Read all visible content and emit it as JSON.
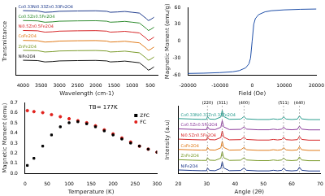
{
  "chart_data": [
    {
      "type": "line",
      "x_label": "Wavelength (cm-1)",
      "y_label": "Transmittance",
      "x": [
        4000,
        3600,
        3400,
        3200,
        3000,
        2500,
        2000,
        1700,
        1600,
        1400,
        1200,
        1000,
        800,
        600,
        560,
        500,
        400
      ],
      "xlim": [
        4200,
        300
      ],
      "xticks": [
        4000,
        3500,
        3000,
        2500,
        2000,
        1500,
        1000,
        500
      ],
      "ylim": [
        0,
        4.1
      ],
      "grid": false,
      "tick_labels": "x",
      "series": [
        {
          "name": "NiFe2O4",
          "color": "#111111",
          "values": [
            0.9,
            0.88,
            0.8,
            0.82,
            0.86,
            0.88,
            0.89,
            0.86,
            0.8,
            0.82,
            0.85,
            0.8,
            0.75,
            0.4,
            0.3,
            0.35,
            0.5
          ]
        },
        {
          "name": "ZnFe2O4",
          "color": "#7a9a2a",
          "values": [
            1.5,
            1.48,
            1.4,
            1.42,
            1.46,
            1.48,
            1.49,
            1.46,
            1.4,
            1.42,
            1.45,
            1.4,
            1.35,
            1.0,
            0.9,
            0.95,
            1.1
          ]
        },
        {
          "name": "CoFe2O4",
          "color": "#e07b1a",
          "values": [
            2.1,
            2.08,
            2.0,
            2.02,
            2.06,
            2.08,
            2.09,
            2.06,
            2.0,
            2.02,
            2.05,
            2.0,
            1.95,
            1.6,
            1.5,
            1.55,
            1.7
          ]
        },
        {
          "name": "Ni0.5Zn0.5Fe2O4",
          "color": "#d62728",
          "values": [
            2.7,
            2.68,
            2.6,
            2.62,
            2.66,
            2.68,
            2.69,
            2.66,
            2.6,
            2.62,
            2.65,
            2.6,
            2.55,
            2.2,
            2.1,
            2.15,
            2.3
          ]
        },
        {
          "name": "Co0.5Zn0.5Fe2O4",
          "color": "#2e8b2e",
          "values": [
            3.3,
            3.28,
            3.2,
            3.22,
            3.26,
            3.28,
            3.29,
            3.26,
            3.2,
            3.22,
            3.25,
            3.2,
            3.15,
            2.8,
            2.7,
            2.75,
            2.9
          ]
        },
        {
          "name": "Co0.33Ni0.33Zn0.33Fe2O4",
          "color": "#1f3b8c",
          "values": [
            3.9,
            3.88,
            3.8,
            3.82,
            3.86,
            3.88,
            3.89,
            3.86,
            3.8,
            3.82,
            3.85,
            3.8,
            3.75,
            3.4,
            3.3,
            3.35,
            3.5
          ]
        }
      ]
    },
    {
      "type": "line",
      "x_label": "Field (Oe)",
      "y_label": "Magnetic Moment (emu/g)",
      "x": [
        -20000,
        -15000,
        -10000,
        -6000,
        -4000,
        -2000,
        -1000,
        -500,
        0,
        500,
        1000,
        2000,
        4000,
        6000,
        10000,
        15000,
        20000
      ],
      "xlim": [
        -20000,
        20000
      ],
      "xticks": [
        -20000,
        -10000,
        0,
        10000,
        20000
      ],
      "ylim": [
        -60,
        60
      ],
      "yticks": [
        -60,
        -30,
        0,
        30,
        60
      ],
      "grid": false,
      "series": [
        {
          "color": "#1f4fa8",
          "values": [
            -57,
            -56.5,
            -55.5,
            -54,
            -52,
            -47,
            -40,
            -30,
            0,
            30,
            40,
            47,
            52,
            54,
            55.5,
            56.5,
            57
          ]
        }
      ]
    },
    {
      "type": "line",
      "x_label": "Temperature (K)",
      "y_label": "Magnetic Moment (emu)",
      "x": [
        5,
        20,
        40,
        60,
        80,
        100,
        120,
        140,
        160,
        180,
        200,
        220,
        240,
        260,
        280,
        300
      ],
      "xlim": [
        0,
        300
      ],
      "xticks": [
        0,
        50,
        100,
        150,
        200,
        250,
        300
      ],
      "ylim": [
        0,
        0.7
      ],
      "yticks": [
        {
          "value": 0,
          "label": "0.0"
        },
        {
          "value": 0.1,
          "label": "0.1"
        },
        {
          "value": 0.2,
          "label": "0.2"
        },
        {
          "value": 0.3,
          "label": "0.3"
        },
        {
          "value": 0.4,
          "label": "0.4"
        },
        {
          "value": 0.5,
          "label": "0.5"
        },
        {
          "value": 0.6,
          "label": "0.6"
        },
        {
          "value": 0.7,
          "label": "0.7"
        }
      ],
      "grid": false,
      "legend": "upper right",
      "annotations": [
        {
          "text": "TB= 177K"
        }
      ],
      "series": [
        {
          "name": "ZFC",
          "color": "#000000",
          "marker": "square",
          "line_style": "none",
          "values": [
            0.08,
            0.15,
            0.27,
            0.38,
            0.46,
            0.5,
            0.51,
            0.49,
            0.46,
            0.42,
            0.38,
            0.34,
            0.3,
            0.27,
            0.24,
            0.21
          ]
        },
        {
          "name": "FC",
          "color": "#e0201b",
          "marker": "circle",
          "line_style": "none",
          "values": [
            0.62,
            0.61,
            0.6,
            0.58,
            0.56,
            0.54,
            0.52,
            0.5,
            0.47,
            0.43,
            0.39,
            0.35,
            0.31,
            0.27,
            0.24,
            0.21
          ]
        }
      ]
    },
    {
      "type": "line",
      "x_label": "Angle (2θ)",
      "y_label": "Intensity (a.u)",
      "x": [
        20,
        25,
        28,
        30,
        30.3,
        31,
        33,
        35,
        35.5,
        36,
        38,
        42,
        43.2,
        44,
        48,
        52,
        53.5,
        55,
        56.5,
        57.1,
        58,
        60,
        62,
        62.7,
        63.5,
        66,
        70
      ],
      "xlim": [
        20,
        70
      ],
      "xticks": [
        20,
        30,
        40,
        50,
        60,
        70
      ],
      "ylim": [
        0,
        6.6
      ],
      "grid": false,
      "tick_labels": "x",
      "annotations": [
        {
          "text": "(220)",
          "x": 30.3
        },
        {
          "text": "(311)",
          "x": 35.5
        },
        {
          "text": "(400)",
          "x": 43.2
        },
        {
          "text": "(511)",
          "x": 57.1
        },
        {
          "text": "(440)",
          "x": 62.7
        }
      ],
      "series": [
        {
          "name": "NiFe2O4",
          "color": "#1f3b8c",
          "values": [
            0.35,
            0.3,
            0.28,
            0.28,
            0.55,
            0.3,
            0.28,
            0.5,
            1.15,
            0.55,
            0.28,
            0.3,
            0.55,
            0.32,
            0.26,
            0.26,
            0.32,
            0.27,
            0.32,
            0.52,
            0.3,
            0.26,
            0.3,
            0.62,
            0.32,
            0.25,
            0.25
          ]
        },
        {
          "name": "ZnFe2O4",
          "color": "#7a9a2a",
          "values": [
            1.35,
            1.3,
            1.28,
            1.28,
            1.55,
            1.3,
            1.28,
            1.5,
            2.15,
            1.55,
            1.28,
            1.3,
            1.55,
            1.32,
            1.26,
            1.26,
            1.32,
            1.27,
            1.32,
            1.52,
            1.3,
            1.26,
            1.3,
            1.62,
            1.32,
            1.25,
            1.25
          ]
        },
        {
          "name": "CoFe2O4",
          "color": "#e07b1a",
          "values": [
            2.35,
            2.3,
            2.28,
            2.28,
            2.55,
            2.3,
            2.28,
            2.5,
            3.15,
            2.55,
            2.28,
            2.3,
            2.55,
            2.32,
            2.26,
            2.26,
            2.32,
            2.27,
            2.32,
            2.52,
            2.3,
            2.26,
            2.3,
            2.62,
            2.32,
            2.25,
            2.25
          ]
        },
        {
          "name": "Ni0.5Zn0.5Fe2O4",
          "color": "#d62728",
          "values": [
            3.35,
            3.3,
            3.28,
            3.28,
            3.55,
            3.3,
            3.28,
            3.5,
            4.15,
            3.55,
            3.28,
            3.3,
            3.55,
            3.32,
            3.26,
            3.26,
            3.32,
            3.27,
            3.32,
            3.52,
            3.3,
            3.26,
            3.3,
            3.62,
            3.32,
            3.25,
            3.25
          ]
        },
        {
          "name": "Co0.5Zn0.5Fe2O4",
          "color": "#8b3a9b",
          "values": [
            4.35,
            4.3,
            4.28,
            4.28,
            4.55,
            4.3,
            4.28,
            4.5,
            5.15,
            4.55,
            4.28,
            4.3,
            4.55,
            4.32,
            4.26,
            4.26,
            4.32,
            4.27,
            4.32,
            4.52,
            4.3,
            4.26,
            4.3,
            4.62,
            4.32,
            4.25,
            4.25
          ]
        },
        {
          "name": "Co0.33Ni0.33Zn0.33Fe2O4",
          "color": "#2a9d8f",
          "values": [
            5.35,
            5.3,
            5.28,
            5.28,
            5.55,
            5.3,
            5.28,
            5.5,
            6.15,
            5.55,
            5.28,
            5.3,
            5.55,
            5.32,
            5.26,
            5.26,
            5.32,
            5.27,
            5.32,
            5.52,
            5.3,
            5.26,
            5.3,
            5.62,
            5.32,
            5.25,
            5.25
          ]
        }
      ]
    }
  ]
}
